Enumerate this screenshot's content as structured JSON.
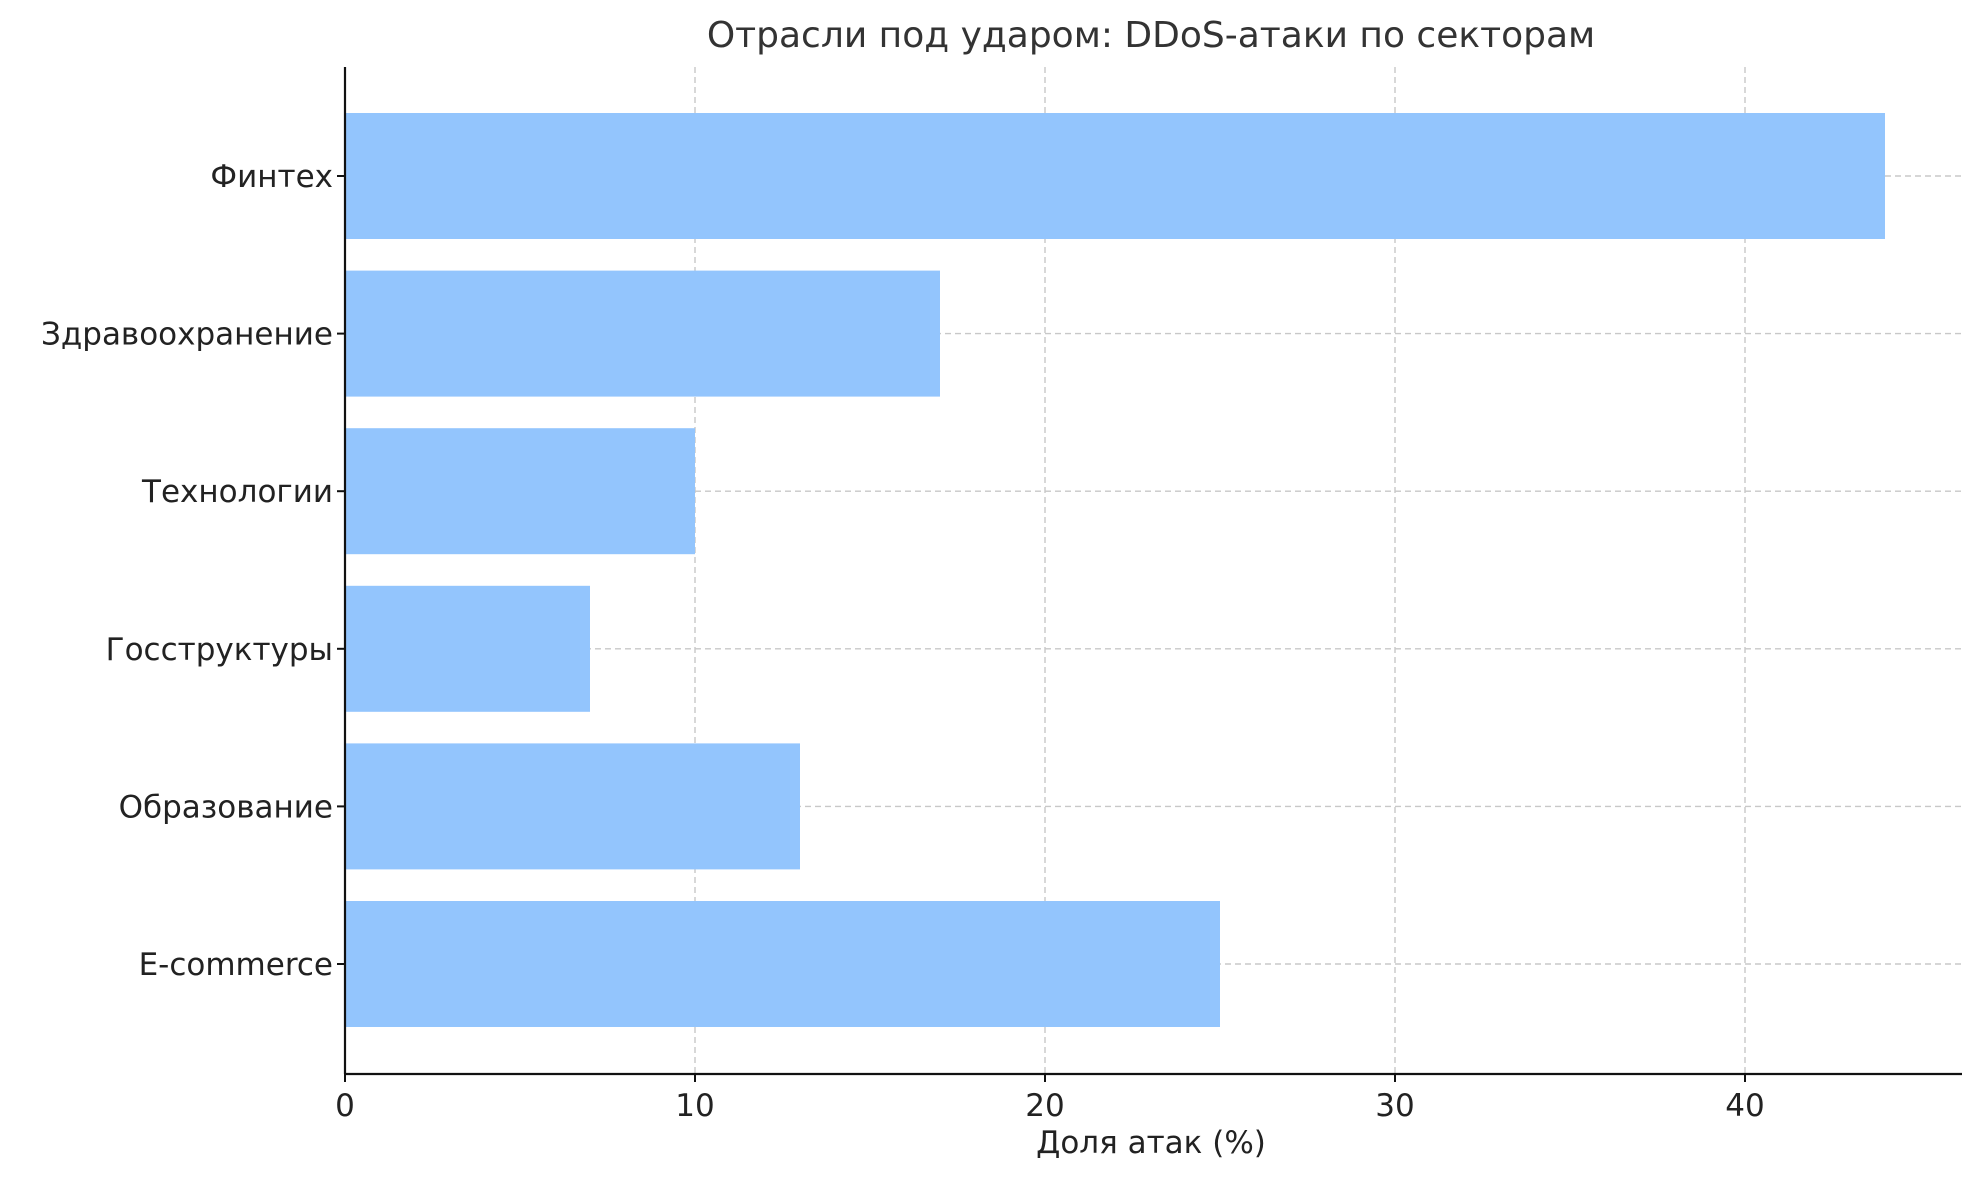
{
  "chart_data": {
    "type": "bar",
    "orientation": "horizontal",
    "title": "Отрасли под ударом: DDoS-атаки по секторам",
    "xlabel": "Доля атак (%)",
    "ylabel": "",
    "categories": [
      "E-commerce",
      "Образование",
      "Госструктуры",
      "Технологии",
      "Здравоохранение",
      "Финтех"
    ],
    "values": [
      25,
      13,
      7,
      10,
      17,
      44
    ],
    "xlim": [
      0,
      46.2
    ],
    "xticks": [
      0,
      10,
      20,
      30,
      40
    ],
    "grid": true,
    "bar_color": "#93c5fd"
  }
}
